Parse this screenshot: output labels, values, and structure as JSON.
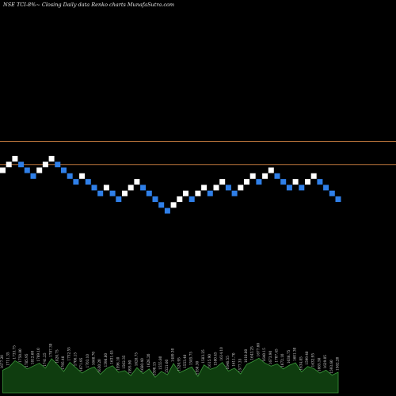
{
  "chart_data": {
    "type": "renko",
    "title": "NSE TCI-8%~  Closing Daily data  Renko  charts MunafaSutra.com",
    "colors": {
      "background": "#000000",
      "up_brick": "#ffffff",
      "down_brick": "#2f7fe8",
      "reference_line": "#b8733a",
      "volume_fill": "#0f3d0f",
      "volume_edge": "#3c9a3c"
    },
    "reference_lines": [
      {
        "name": "upper",
        "value": 10
      },
      {
        "name": "lower",
        "value": 6
      }
    ],
    "bricks": [
      {
        "dir": "up",
        "level": 5
      },
      {
        "dir": "up",
        "level": 6
      },
      {
        "dir": "up",
        "level": 7
      },
      {
        "dir": "down",
        "level": 6
      },
      {
        "dir": "down",
        "level": 5
      },
      {
        "dir": "down",
        "level": 4
      },
      {
        "dir": "up",
        "level": 5
      },
      {
        "dir": "up",
        "level": 6
      },
      {
        "dir": "up",
        "level": 7
      },
      {
        "dir": "down",
        "level": 6
      },
      {
        "dir": "down",
        "level": 5
      },
      {
        "dir": "down",
        "level": 4
      },
      {
        "dir": "down",
        "level": 3
      },
      {
        "dir": "up",
        "level": 4
      },
      {
        "dir": "down",
        "level": 3
      },
      {
        "dir": "down",
        "level": 2
      },
      {
        "dir": "down",
        "level": 1
      },
      {
        "dir": "up",
        "level": 2
      },
      {
        "dir": "down",
        "level": 1
      },
      {
        "dir": "down",
        "level": 0
      },
      {
        "dir": "up",
        "level": 1
      },
      {
        "dir": "up",
        "level": 2
      },
      {
        "dir": "up",
        "level": 3
      },
      {
        "dir": "down",
        "level": 2
      },
      {
        "dir": "down",
        "level": 1
      },
      {
        "dir": "down",
        "level": 0
      },
      {
        "dir": "down",
        "level": -1
      },
      {
        "dir": "down",
        "level": -2
      },
      {
        "dir": "up",
        "level": -1
      },
      {
        "dir": "up",
        "level": 0
      },
      {
        "dir": "up",
        "level": 1
      },
      {
        "dir": "down",
        "level": 0
      },
      {
        "dir": "up",
        "level": 1
      },
      {
        "dir": "up",
        "level": 2
      },
      {
        "dir": "down",
        "level": 1
      },
      {
        "dir": "up",
        "level": 2
      },
      {
        "dir": "up",
        "level": 3
      },
      {
        "dir": "down",
        "level": 2
      },
      {
        "dir": "down",
        "level": 1
      },
      {
        "dir": "up",
        "level": 2
      },
      {
        "dir": "up",
        "level": 3
      },
      {
        "dir": "up",
        "level": 4
      },
      {
        "dir": "down",
        "level": 3
      },
      {
        "dir": "up",
        "level": 4
      },
      {
        "dir": "up",
        "level": 5
      },
      {
        "dir": "down",
        "level": 4
      },
      {
        "dir": "down",
        "level": 3
      },
      {
        "dir": "down",
        "level": 2
      },
      {
        "dir": "up",
        "level": 3
      },
      {
        "dir": "down",
        "level": 2
      },
      {
        "dir": "up",
        "level": 3
      },
      {
        "dir": "up",
        "level": 4
      },
      {
        "dir": "down",
        "level": 3
      },
      {
        "dir": "down",
        "level": 2
      },
      {
        "dir": "down",
        "level": 1
      },
      {
        "dir": "down",
        "level": 0
      }
    ],
    "volume": [
      {
        "value": 0.55,
        "label": "1677.20"
      },
      {
        "value": 0.62,
        "label": "1711.35"
      },
      {
        "value": 0.78,
        "label": "1733.75"
      },
      {
        "value": 0.7,
        "label": "1750.80"
      },
      {
        "value": 0.58,
        "label": "1785.95"
      },
      {
        "value": 0.65,
        "label": "1812.60"
      },
      {
        "value": 0.72,
        "label": "1769.10"
      },
      {
        "value": 0.6,
        "label": "1741.25"
      },
      {
        "value": 0.83,
        "label": "1787.30"
      },
      {
        "value": 0.68,
        "label": "1820.75"
      },
      {
        "value": 0.52,
        "label": "1795.40"
      },
      {
        "value": 0.74,
        "label": "1752.55"
      },
      {
        "value": 0.61,
        "label": "1706.15"
      },
      {
        "value": 0.48,
        "label": "1671.95"
      },
      {
        "value": 0.57,
        "label": "1703.10"
      },
      {
        "value": 0.63,
        "label": "1668.70"
      },
      {
        "value": 0.45,
        "label": "1630.20"
      },
      {
        "value": 0.59,
        "label": "1598.80"
      },
      {
        "value": 0.66,
        "label": "1631.45"
      },
      {
        "value": 0.5,
        "label": "1596.10"
      },
      {
        "value": 0.54,
        "label": "1562.35"
      },
      {
        "value": 0.42,
        "label": "1595.90"
      },
      {
        "value": 0.61,
        "label": "1628.75"
      },
      {
        "value": 0.47,
        "label": "1660.40"
      },
      {
        "value": 0.58,
        "label": "1626.20"
      },
      {
        "value": 0.38,
        "label": "1590.15"
      },
      {
        "value": 0.52,
        "label": "1555.80"
      },
      {
        "value": 0.44,
        "label": "1521.60"
      },
      {
        "value": 0.71,
        "label": "1489.30"
      },
      {
        "value": 0.49,
        "label": "1520.95"
      },
      {
        "value": 0.56,
        "label": "1553.40"
      },
      {
        "value": 0.63,
        "label": "1585.75"
      },
      {
        "value": 0.4,
        "label": "1550.30"
      },
      {
        "value": 0.68,
        "label": "1583.25"
      },
      {
        "value": 0.57,
        "label": "1615.90"
      },
      {
        "value": 0.62,
        "label": "1580.45"
      },
      {
        "value": 0.74,
        "label": "1614.10"
      },
      {
        "value": 0.53,
        "label": "1646.55"
      },
      {
        "value": 0.6,
        "label": "1611.70"
      },
      {
        "value": 0.46,
        "label": "1577.35"
      },
      {
        "value": 0.69,
        "label": "1610.80"
      },
      {
        "value": 0.76,
        "label": "1643.25"
      },
      {
        "value": 0.84,
        "label": "1677.60"
      },
      {
        "value": 0.72,
        "label": "1640.15"
      },
      {
        "value": 0.65,
        "label": "1673.90"
      },
      {
        "value": 0.7,
        "label": "1707.45"
      },
      {
        "value": 0.58,
        "label": "1672.10"
      },
      {
        "value": 0.67,
        "label": "1636.75"
      },
      {
        "value": 0.73,
        "label": "1601.30"
      },
      {
        "value": 0.51,
        "label": "1634.85"
      },
      {
        "value": 0.64,
        "label": "1599.40"
      },
      {
        "value": 0.59,
        "label": "1632.95"
      },
      {
        "value": 0.48,
        "label": "1665.50"
      },
      {
        "value": 0.55,
        "label": "1629.05"
      },
      {
        "value": 0.43,
        "label": "1593.60"
      },
      {
        "value": 0.5,
        "label": "1562.20"
      }
    ]
  }
}
